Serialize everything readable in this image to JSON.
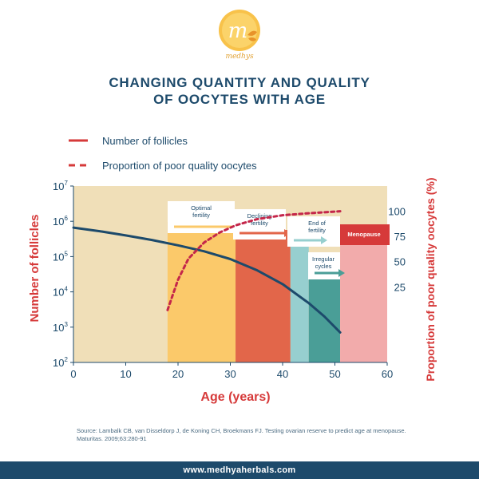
{
  "brand": {
    "logo_letter": "m",
    "logo_text": "medhys"
  },
  "title_lines": [
    "CHANGING QUANTITY AND QUALITY",
    "OF OOCYTES WITH AGE"
  ],
  "colors": {
    "navy": "#1d4a6b",
    "red": "#d63a3a",
    "background_beige": "#f0dfb8",
    "optimal": "#fbc96a",
    "declining": "#e2664a",
    "end": "#97cfcf",
    "irregular": "#4a9e97",
    "menopause": "#f2abab"
  },
  "chart_data": {
    "type": "line",
    "xlabel": "Age (years)",
    "ylabel": "Number of follicles",
    "y2label": "Proportion of poor quality oocytes (%)",
    "xlim": [
      0,
      60
    ],
    "xticks": [
      "0",
      "10",
      "20",
      "30",
      "40",
      "50",
      "60"
    ],
    "ylim_log10": [
      2,
      7
    ],
    "yticks": [
      {
        "base": "10",
        "exp": "2",
        "log": 2
      },
      {
        "base": "10",
        "exp": "3",
        "log": 3
      },
      {
        "base": "10",
        "exp": "4",
        "log": 4
      },
      {
        "base": "10",
        "exp": "5",
        "log": 5
      },
      {
        "base": "10",
        "exp": "6",
        "log": 6
      },
      {
        "base": "10",
        "exp": "7",
        "log": 7
      }
    ],
    "y2ticks": [
      {
        "label": "100",
        "value": 100
      },
      {
        "label": "75",
        "value": 75
      },
      {
        "label": "50",
        "value": 50
      },
      {
        "label": "25",
        "value": 25
      }
    ],
    "y2lim": [
      -50,
      125
    ],
    "legend": [
      {
        "label": "Number of follicles",
        "style": "solid"
      },
      {
        "label": "Proportion of poor quality oocytes",
        "style": "dashed"
      }
    ],
    "phases": [
      {
        "label": [
          "Optimal",
          "fertility"
        ],
        "start": 18,
        "end": 31,
        "color": "#fbc96a"
      },
      {
        "label": [
          "Declining",
          "fertility"
        ],
        "start": 31,
        "end": 41.5,
        "color": "#e2664a"
      },
      {
        "label": [
          "End of",
          "fertility"
        ],
        "start": 41.5,
        "end": 45,
        "color": "#97cfcf"
      },
      {
        "label": [
          "Irregular",
          "cycles"
        ],
        "start": 45,
        "end": 51,
        "color": "#4a9e97"
      },
      {
        "label": [
          "Menopause"
        ],
        "start": 51,
        "end": 60,
        "color": "#f2abab"
      }
    ],
    "series": [
      {
        "name": "Number of follicles",
        "style": "solid",
        "x": [
          0,
          5,
          10,
          15,
          20,
          25,
          30,
          35,
          40,
          45,
          48,
          51
        ],
        "y_log10": [
          5.82,
          5.72,
          5.6,
          5.47,
          5.32,
          5.15,
          4.93,
          4.62,
          4.22,
          3.68,
          3.3,
          2.85
        ]
      },
      {
        "name": "Proportion of poor quality oocytes",
        "style": "dashed",
        "x": [
          18,
          19,
          20,
          22,
          25,
          28,
          31,
          35,
          40,
          45,
          51
        ],
        "y_percent": [
          2,
          17,
          32,
          53,
          69,
          79,
          86,
          92,
          96,
          98,
          100
        ]
      }
    ]
  },
  "source": "Source: Lambalk CB, van Disseldorp J, de Koning CH, Broekmans FJ. Testing ovarian reserve to predict age at menopause. Maturitas. 2009;63:280-91",
  "footer": "www.medhyaherbals.com"
}
